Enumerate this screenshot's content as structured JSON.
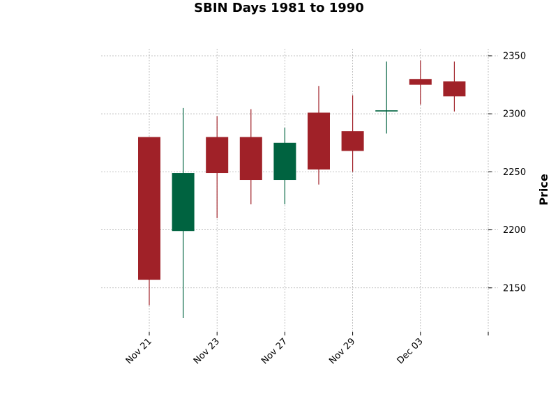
{
  "chart_data": {
    "type": "candlestick",
    "title": "SBIN Days 1981 to 1990",
    "ylabel": "Price",
    "xlabel": "",
    "ylim": [
      2112,
      2356
    ],
    "y_ticks": [
      2150,
      2200,
      2250,
      2300,
      2350
    ],
    "x_tick_labels": [
      "Nov 21",
      "Nov 23",
      "Nov 27",
      "Nov 29",
      "Dec 03",
      ""
    ],
    "grid": true,
    "colors": {
      "up": "#006340",
      "down": "#a02128"
    },
    "candles": [
      {
        "open": 2280,
        "high": 2280,
        "low": 2135,
        "close": 2157
      },
      {
        "open": 2199,
        "high": 2305,
        "low": 2124,
        "close": 2249
      },
      {
        "open": 2280,
        "high": 2298,
        "low": 2210,
        "close": 2249
      },
      {
        "open": 2280,
        "high": 2304,
        "low": 2222,
        "close": 2243
      },
      {
        "open": 2243,
        "high": 2288,
        "low": 2222,
        "close": 2275
      },
      {
        "open": 2301,
        "high": 2324,
        "low": 2239,
        "close": 2252
      },
      {
        "open": 2285,
        "high": 2316,
        "low": 2250,
        "close": 2268
      },
      {
        "open": 2302,
        "high": 2345,
        "low": 2283,
        "close": 2303
      },
      {
        "open": 2330,
        "high": 2346,
        "low": 2308,
        "close": 2325
      },
      {
        "open": 2328,
        "high": 2345,
        "low": 2302,
        "close": 2315
      }
    ]
  }
}
